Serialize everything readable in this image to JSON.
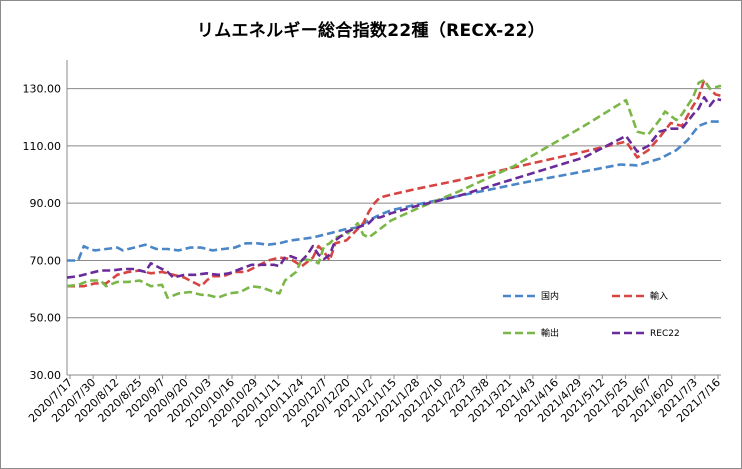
{
  "chart_data": {
    "type": "line",
    "title": "リムエネルギー総合指数22種（RECX-22）",
    "xlabel": "",
    "ylabel": "",
    "ylim": [
      30,
      140
    ],
    "yticks": [
      "30.00",
      "50.00",
      "70.00",
      "90.00",
      "110.00",
      "130.00"
    ],
    "grid": "horizontal",
    "legend_position": "bottom-right",
    "x_tick_labels": [
      "2020/7/17",
      "2020/7/30",
      "2020/8/12",
      "2020/8/25",
      "2020/9/7",
      "2020/9/20",
      "2020/10/3",
      "2020/10/16",
      "2020/10/29",
      "2020/11/11",
      "2020/11/24",
      "2020/12/7",
      "2020/12/20",
      "2021/1/2",
      "2021/1/15",
      "2021/1/28",
      "2021/2/10",
      "2021/2/23",
      "2021/3/8",
      "2021/3/21",
      "2021/4/3",
      "2021/4/16",
      "2021/4/29",
      "2021/5/12",
      "2021/5/25",
      "2021/6/7",
      "2021/6/20",
      "2021/7/3",
      "2021/7/16"
    ],
    "series": [
      {
        "name": "国内",
        "color": "#4a86c8",
        "points": [
          [
            0,
            70
          ],
          [
            4,
            70
          ],
          [
            6,
            75
          ],
          [
            8,
            74
          ],
          [
            10,
            73.5
          ],
          [
            14,
            74
          ],
          [
            18,
            74.5
          ],
          [
            20,
            73.5
          ],
          [
            24,
            74.5
          ],
          [
            28,
            75.5
          ],
          [
            32,
            74
          ],
          [
            36,
            74
          ],
          [
            40,
            73.5
          ],
          [
            44,
            74.5
          ],
          [
            48,
            74.5
          ],
          [
            52,
            73.5
          ],
          [
            56,
            74
          ],
          [
            60,
            74.5
          ],
          [
            64,
            76
          ],
          [
            68,
            76
          ],
          [
            72,
            75.5
          ],
          [
            76,
            76
          ],
          [
            80,
            77
          ],
          [
            84,
            77.5
          ],
          [
            88,
            78
          ],
          [
            92,
            79
          ],
          [
            96,
            80
          ],
          [
            100,
            81
          ],
          [
            104,
            81.5
          ],
          [
            108,
            84
          ],
          [
            112,
            86
          ],
          [
            116,
            87.5
          ],
          [
            125,
            89.5
          ],
          [
            140,
            92.5
          ],
          [
            165,
            97.5
          ],
          [
            190,
            102
          ],
          [
            198,
            103.5
          ],
          [
            204,
            103.2
          ],
          [
            212,
            105.5
          ],
          [
            218,
            108.5
          ],
          [
            222,
            112
          ],
          [
            226,
            117
          ],
          [
            230,
            118.5
          ],
          [
            234,
            118.5
          ]
        ]
      },
      {
        "name": "輸入",
        "color": "#d64541",
        "points": [
          [
            0,
            61
          ],
          [
            6,
            61
          ],
          [
            10,
            62
          ],
          [
            14,
            62
          ],
          [
            18,
            65
          ],
          [
            22,
            66
          ],
          [
            26,
            66.5
          ],
          [
            30,
            65.5
          ],
          [
            34,
            66
          ],
          [
            38,
            65
          ],
          [
            42,
            64
          ],
          [
            46,
            62
          ],
          [
            48,
            61
          ],
          [
            50,
            63
          ],
          [
            52,
            64.5
          ],
          [
            56,
            64.5
          ],
          [
            60,
            66
          ],
          [
            64,
            66
          ],
          [
            68,
            68
          ],
          [
            72,
            70
          ],
          [
            76,
            71
          ],
          [
            80,
            70.5
          ],
          [
            84,
            68
          ],
          [
            88,
            71
          ],
          [
            90,
            75
          ],
          [
            92,
            73
          ],
          [
            94,
            70
          ],
          [
            96,
            76
          ],
          [
            100,
            77
          ],
          [
            104,
            81
          ],
          [
            106,
            83
          ],
          [
            108,
            87
          ],
          [
            110,
            90
          ],
          [
            112,
            92
          ],
          [
            116,
            93
          ],
          [
            125,
            95
          ],
          [
            140,
            98
          ],
          [
            160,
            102.5
          ],
          [
            185,
            108
          ],
          [
            200,
            111.5
          ],
          [
            204,
            106
          ],
          [
            208,
            108.5
          ],
          [
            212,
            113
          ],
          [
            216,
            118
          ],
          [
            220,
            117
          ],
          [
            224,
            124
          ],
          [
            226,
            127
          ],
          [
            228,
            133
          ],
          [
            230,
            130
          ],
          [
            232,
            128
          ],
          [
            234,
            127.5
          ]
        ]
      },
      {
        "name": "輸出",
        "color": "#7ab648",
        "points": [
          [
            0,
            61
          ],
          [
            4,
            61.5
          ],
          [
            8,
            63
          ],
          [
            12,
            63
          ],
          [
            14,
            61
          ],
          [
            18,
            62.5
          ],
          [
            22,
            62.5
          ],
          [
            26,
            63
          ],
          [
            30,
            61
          ],
          [
            34,
            61.5
          ],
          [
            36,
            57
          ],
          [
            40,
            58.5
          ],
          [
            44,
            59
          ],
          [
            48,
            58
          ],
          [
            50,
            58
          ],
          [
            54,
            57
          ],
          [
            58,
            58.5
          ],
          [
            62,
            59
          ],
          [
            66,
            61
          ],
          [
            70,
            60.5
          ],
          [
            74,
            59
          ],
          [
            76,
            58.5
          ],
          [
            78,
            63
          ],
          [
            82,
            66
          ],
          [
            84,
            70.5
          ],
          [
            88,
            70
          ],
          [
            90,
            69
          ],
          [
            92,
            75
          ],
          [
            94,
            76
          ],
          [
            96,
            78
          ],
          [
            98,
            78.5
          ],
          [
            100,
            79
          ],
          [
            102,
            81
          ],
          [
            104,
            83
          ],
          [
            106,
            79
          ],
          [
            108,
            78
          ],
          [
            112,
            81
          ],
          [
            116,
            84
          ],
          [
            125,
            88
          ],
          [
            140,
            94
          ],
          [
            160,
            103
          ],
          [
            185,
            117
          ],
          [
            200,
            126
          ],
          [
            204,
            115
          ],
          [
            208,
            114
          ],
          [
            212,
            119
          ],
          [
            214,
            122
          ],
          [
            218,
            119
          ],
          [
            220,
            121
          ],
          [
            224,
            127
          ],
          [
            226,
            132
          ],
          [
            228,
            133
          ],
          [
            230,
            130
          ],
          [
            232,
            130.5
          ],
          [
            234,
            131
          ]
        ]
      },
      {
        "name": "REC22",
        "color": "#6a2b9a",
        "points": [
          [
            0,
            64
          ],
          [
            4,
            64.5
          ],
          [
            8,
            65.5
          ],
          [
            12,
            66.5
          ],
          [
            16,
            66.5
          ],
          [
            20,
            67
          ],
          [
            24,
            67
          ],
          [
            28,
            66
          ],
          [
            30,
            69
          ],
          [
            34,
            67
          ],
          [
            36,
            66
          ],
          [
            38,
            64
          ],
          [
            42,
            65
          ],
          [
            46,
            65
          ],
          [
            50,
            65.5
          ],
          [
            54,
            65
          ],
          [
            58,
            65.5
          ],
          [
            62,
            67
          ],
          [
            66,
            68.5
          ],
          [
            70,
            68.5
          ],
          [
            74,
            68.5
          ],
          [
            76,
            68
          ],
          [
            78,
            71
          ],
          [
            80,
            71.5
          ],
          [
            84,
            70
          ],
          [
            86,
            72
          ],
          [
            88,
            75
          ],
          [
            90,
            72
          ],
          [
            92,
            70.5
          ],
          [
            94,
            72
          ],
          [
            96,
            77
          ],
          [
            100,
            80
          ],
          [
            104,
            81.5
          ],
          [
            108,
            83
          ],
          [
            110,
            85
          ],
          [
            112,
            85
          ],
          [
            116,
            86.5
          ],
          [
            125,
            89
          ],
          [
            140,
            92.5
          ],
          [
            165,
            100
          ],
          [
            185,
            106
          ],
          [
            200,
            113.5
          ],
          [
            204,
            108
          ],
          [
            208,
            110
          ],
          [
            212,
            115
          ],
          [
            216,
            116
          ],
          [
            220,
            116
          ],
          [
            224,
            121
          ],
          [
            226,
            123
          ],
          [
            228,
            127
          ],
          [
            230,
            124
          ],
          [
            232,
            126.5
          ],
          [
            234,
            126
          ]
        ]
      }
    ]
  }
}
